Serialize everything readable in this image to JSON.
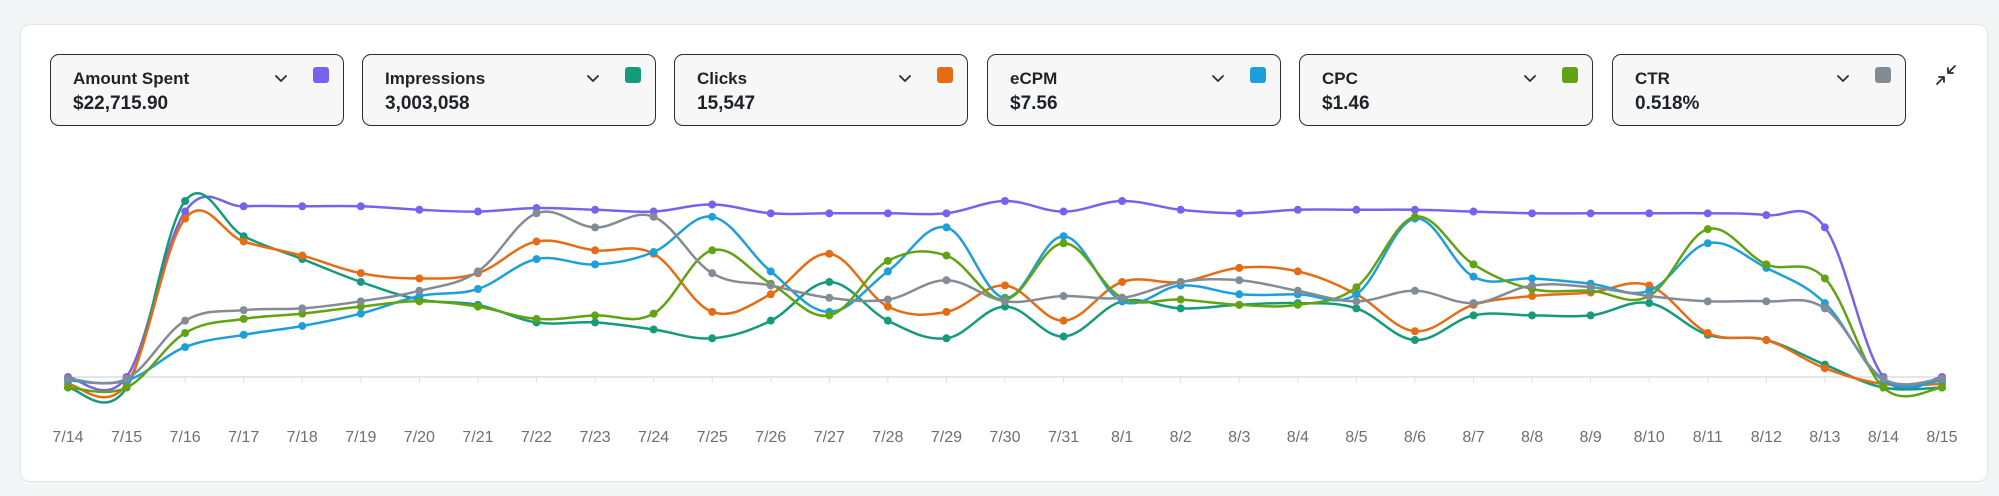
{
  "metrics": [
    {
      "label": "Amount Spent",
      "value": "$22,715.90",
      "color": "#7563f0",
      "icon": "chevron-down-icon"
    },
    {
      "label": "Impressions",
      "value": "3,003,058",
      "color": "#169a7c",
      "icon": "chevron-down-icon"
    },
    {
      "label": "Clicks",
      "value": "15,547",
      "color": "#e66c14",
      "icon": "chevron-down-icon"
    },
    {
      "label": "eCPM",
      "value": "$7.56",
      "color": "#1d9fdb",
      "icon": "chevron-down-icon"
    },
    {
      "label": "CPC",
      "value": "$1.46",
      "color": "#62a313",
      "icon": "chevron-down-icon"
    },
    {
      "label": "CTR",
      "value": "0.518%",
      "color": "#838c95",
      "icon": "chevron-down-icon"
    }
  ],
  "collapse_icon": "collapse-icon",
  "chart_data": {
    "type": "line",
    "title": "",
    "xlabel": "",
    "ylabel": "",
    "normalized": true,
    "ylim": [
      0,
      100
    ],
    "y_axis_labels": "none",
    "grid": "baseline only",
    "categories": [
      "7/14",
      "7/15",
      "7/16",
      "7/17",
      "7/18",
      "7/19",
      "7/20",
      "7/21",
      "7/22",
      "7/23",
      "7/24",
      "7/25",
      "7/26",
      "7/27",
      "7/28",
      "7/29",
      "7/30",
      "7/31",
      "8/1",
      "8/2",
      "8/3",
      "8/4",
      "8/5",
      "8/6",
      "8/7",
      "8/8",
      "8/9",
      "8/10",
      "8/11",
      "8/12",
      "8/13",
      "8/14",
      "8/15"
    ],
    "series": [
      {
        "name": "Amount Spent",
        "color": "#7563f0",
        "values": [
          0,
          0,
          94,
          97,
          97,
          97,
          95,
          94,
          96,
          95,
          94,
          98,
          93,
          93,
          93,
          93,
          100,
          94,
          100,
          95,
          93,
          95,
          95,
          95,
          94,
          93,
          93,
          93,
          93,
          92,
          85,
          0,
          0
        ]
      },
      {
        "name": "Impressions",
        "color": "#169a7c",
        "values": [
          -6,
          -6,
          100,
          80,
          67,
          54,
          44,
          41,
          31,
          31,
          27,
          22,
          32,
          54,
          32,
          22,
          40,
          23,
          43,
          39,
          41,
          42,
          39,
          21,
          35,
          35,
          35,
          42,
          24,
          21,
          7,
          -6,
          -6
        ]
      },
      {
        "name": "Clicks",
        "color": "#e66c14",
        "values": [
          -4,
          -4,
          90,
          77,
          69,
          59,
          56,
          59,
          77,
          72,
          70,
          37,
          47,
          70,
          40,
          37,
          52,
          32,
          54,
          54,
          62,
          60,
          47,
          26,
          41,
          46,
          48,
          52,
          25,
          21,
          5,
          -4,
          -4
        ]
      },
      {
        "name": "eCPM",
        "color": "#1d9fdb",
        "values": [
          -2,
          -2,
          17,
          24,
          29,
          36,
          46,
          50,
          67,
          64,
          71,
          91,
          60,
          37,
          60,
          85,
          45,
          80,
          43,
          52,
          47,
          47,
          47,
          90,
          57,
          56,
          53,
          49,
          76,
          62,
          42,
          -2,
          -2
        ]
      },
      {
        "name": "CPC",
        "color": "#62a313",
        "values": [
          -6,
          -6,
          25,
          33,
          36,
          40,
          43,
          40,
          33,
          35,
          36,
          72,
          53,
          35,
          66,
          69,
          44,
          76,
          45,
          44,
          41,
          41,
          51,
          91,
          64,
          50,
          49,
          46,
          84,
          64,
          56,
          -6,
          -6
        ]
      },
      {
        "name": "CTR",
        "color": "#838c95",
        "values": [
          -1,
          -1,
          32,
          38,
          39,
          43,
          49,
          60,
          93,
          85,
          91,
          59,
          52,
          45,
          44,
          55,
          43,
          46,
          45,
          54,
          55,
          49,
          43,
          49,
          42,
          52,
          51,
          46,
          43,
          43,
          39,
          -1,
          -1
        ]
      }
    ]
  }
}
